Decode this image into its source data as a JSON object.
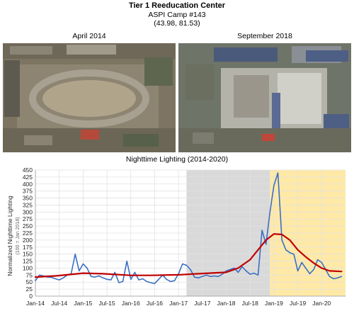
{
  "header": {
    "title": "Tier 1 Reeducation Center",
    "subtitle": "ASPI Camp #143",
    "coordinates": "(43.98, 81.53)"
  },
  "images": {
    "left_caption": "April 2014",
    "right_caption": "September 2018"
  },
  "chart_data": {
    "type": "line",
    "title": "Nighttime Lighting (2014-2020)",
    "ylabel": "Normalized Nighttime Lighting",
    "ylabel_note": "(100 = Jan 2018)",
    "xlabel": "",
    "ylim": [
      0,
      450
    ],
    "yticks": [
      0,
      25,
      50,
      75,
      100,
      125,
      150,
      175,
      200,
      225,
      250,
      275,
      300,
      325,
      350,
      375,
      400,
      425,
      450
    ],
    "xticks": [
      "Jan-14",
      "Jul-14",
      "Jan-15",
      "Jul-15",
      "Jan-16",
      "Jul-16",
      "Jan-17",
      "Jul-17",
      "Jan-18",
      "Jul-18",
      "Jan-19",
      "Jul-19",
      "Jan-20"
    ],
    "grid": true,
    "shaded_regions": [
      {
        "from": "2017-03",
        "to": "2018-12",
        "color": "#d9d9d9"
      },
      {
        "from": "2018-12",
        "to": "2020-07",
        "color": "#ffe9a6"
      }
    ],
    "series": [
      {
        "color": "#3a6fc4",
        "x": [
          "2014-01",
          "2014-02",
          "2014-03",
          "2014-04",
          "2014-05",
          "2014-06",
          "2014-07",
          "2014-08",
          "2014-09",
          "2014-10",
          "2014-11",
          "2014-12",
          "2015-01",
          "2015-02",
          "2015-03",
          "2015-04",
          "2015-05",
          "2015-06",
          "2015-07",
          "2015-08",
          "2015-09",
          "2015-10",
          "2015-11",
          "2015-12",
          "2016-01",
          "2016-02",
          "2016-03",
          "2016-04",
          "2016-05",
          "2016-06",
          "2016-07",
          "2016-08",
          "2016-09",
          "2016-10",
          "2016-11",
          "2016-12",
          "2017-01",
          "2017-02",
          "2017-03",
          "2017-04",
          "2017-05",
          "2017-06",
          "2017-07",
          "2017-08",
          "2017-09",
          "2017-10",
          "2017-11",
          "2017-12",
          "2018-01",
          "2018-02",
          "2018-03",
          "2018-04",
          "2018-05",
          "2018-06",
          "2018-07",
          "2018-08",
          "2018-09",
          "2018-10",
          "2018-11",
          "2018-12",
          "2019-01",
          "2019-02",
          "2019-03",
          "2019-04",
          "2019-05",
          "2019-06",
          "2019-07",
          "2019-08",
          "2019-09",
          "2019-10",
          "2019-11",
          "2019-12",
          "2020-01",
          "2020-02",
          "2020-03",
          "2020-04",
          "2020-05",
          "2020-06"
        ],
        "values": [
          55,
          75,
          72,
          68,
          67,
          62,
          58,
          65,
          75,
          80,
          150,
          90,
          115,
          100,
          70,
          68,
          72,
          65,
          60,
          58,
          85,
          48,
          52,
          125,
          60,
          85,
          58,
          62,
          52,
          48,
          45,
          60,
          75,
          60,
          52,
          55,
          80,
          115,
          110,
          95,
          68,
          65,
          70,
          75,
          70,
          72,
          70,
          78,
          90,
          95,
          100,
          85,
          105,
          90,
          78,
          82,
          75,
          235,
          185,
          300,
          395,
          440,
          200,
          165,
          155,
          150,
          90,
          120,
          100,
          80,
          95,
          130,
          120,
          95,
          70,
          62,
          65,
          70
        ],
        "show_in_legend": false
      },
      {
        "color": "#c00000",
        "x": [
          "2014-01",
          "2014-06",
          "2015-01",
          "2015-06",
          "2016-01",
          "2016-06",
          "2017-01",
          "2017-06",
          "2018-01",
          "2018-04",
          "2018-07",
          "2018-09",
          "2018-11",
          "2019-01",
          "2019-03",
          "2019-05",
          "2019-07",
          "2019-09",
          "2019-11",
          "2020-01",
          "2020-03",
          "2020-06"
        ],
        "values": [
          68,
          72,
          82,
          80,
          74,
          74,
          76,
          80,
          85,
          100,
          130,
          165,
          200,
          222,
          220,
          200,
          165,
          140,
          118,
          100,
          90,
          88
        ],
        "show_in_legend": false
      }
    ]
  }
}
